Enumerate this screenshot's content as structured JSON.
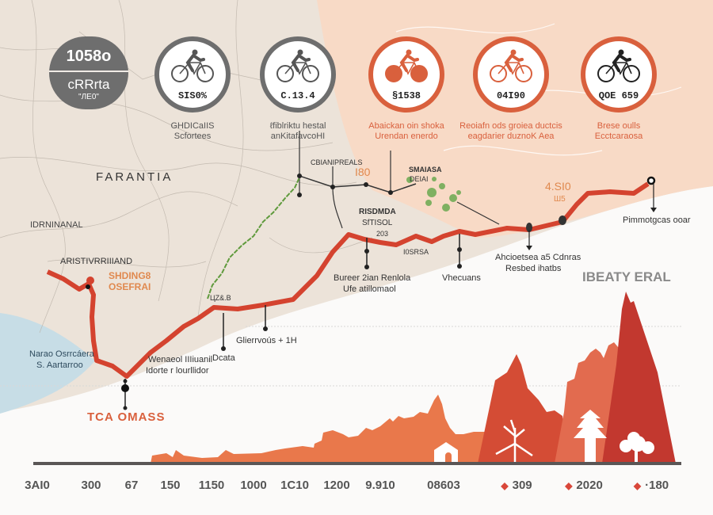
{
  "colors": {
    "route": "#d4432f",
    "trail": "#5f9a3c",
    "map_bg": "#ece3d9",
    "peach": "#f8dac6",
    "sea": "#c7dde6",
    "accent": "#d9603d",
    "gray_badge": "#6e6e6e"
  },
  "summary_badge": {
    "value": "1058o",
    "title": "cRRrta",
    "subtitle": "\"ЛЕ0\""
  },
  "bike_badges": [
    {
      "icon": "road-bike-icon",
      "value": "SIS0%",
      "caption1": "GHDICaIIS",
      "caption2": "Scfortees",
      "style": "gray"
    },
    {
      "icon": "road-bike-icon",
      "value": "C.13.4",
      "caption1": "ℓfiblriktu hestal",
      "caption2": "anKitafavcoHI",
      "style": "gray"
    },
    {
      "icon": "mountain-bike-icon",
      "value": "§1538",
      "caption1": "Abaickan oin shoka",
      "caption2": "Urendan enerdo",
      "style": "orange"
    },
    {
      "icon": "city-bike-icon",
      "value": "04I90",
      "caption1": "Reoiafn ods groiea ductcis",
      "caption2": "eagdarier duznoK Aea",
      "style": "orange"
    },
    {
      "icon": "racing-bike-icon",
      "value": "QOE 659",
      "caption1": "Brese oulls",
      "caption2": "Ecctcaraosa",
      "style": "orange"
    }
  ],
  "map_labels": {
    "region": "FARANTIA",
    "region2": "IDRNINANAL",
    "area1": "ARISTIVRRIIIAND",
    "area1_orange_1": "SHDING8",
    "area1_orange_2": "OSEFRAI",
    "junction": "CBIANIPREALS",
    "orange_num": "I80",
    "park_1": "SMAIASA",
    "park_2": "DEIAI",
    "town_1": "RISDMDA",
    "town_2": "SfTISOL",
    "town_3": "203",
    "road": "I0SRSA",
    "trail_mark": "ЦZ&.B",
    "orange_num2_1": "4.SI0",
    "orange_num2_2": "Ш5",
    "end": "Pimmotgcas ooar",
    "poi1_1": "Bureer 2ian Renlola",
    "poi1_2": "Ufe atillomaol",
    "poi2": "Vhecuans",
    "poi3_1": "Ahcioetsea a5 Cdnras",
    "poi3_2": "Resbed ihatbs",
    "poi4": "Glierrvoús + 1H",
    "poi5": "Dcata",
    "poi6_1": "Wenaeol IIIiuanil",
    "poi6_2": "Idorte r lourllidor",
    "sea_1": "Narao Osrrcáera",
    "sea_2": "S. Aartarroo",
    "start": "TCA OMASS",
    "peak": "IBEATY ERAL"
  },
  "elevation": {
    "ticks": [
      {
        "label": "3AI0"
      },
      {
        "label": "300"
      },
      {
        "label": "67"
      },
      {
        "label": "150"
      },
      {
        "label": "1150"
      },
      {
        "label": "1000"
      },
      {
        "label": "1C10"
      },
      {
        "label": "1200"
      },
      {
        "label": "9.910"
      },
      {
        "label": "08603"
      },
      {
        "label": "309",
        "marker": true
      },
      {
        "label": "2020",
        "marker": true
      },
      {
        "label": "·180",
        "marker": true
      }
    ],
    "icons": [
      "hut-icon",
      "bare-tree-icon",
      "pine-tree-icon",
      "oak-tree-icon"
    ]
  }
}
